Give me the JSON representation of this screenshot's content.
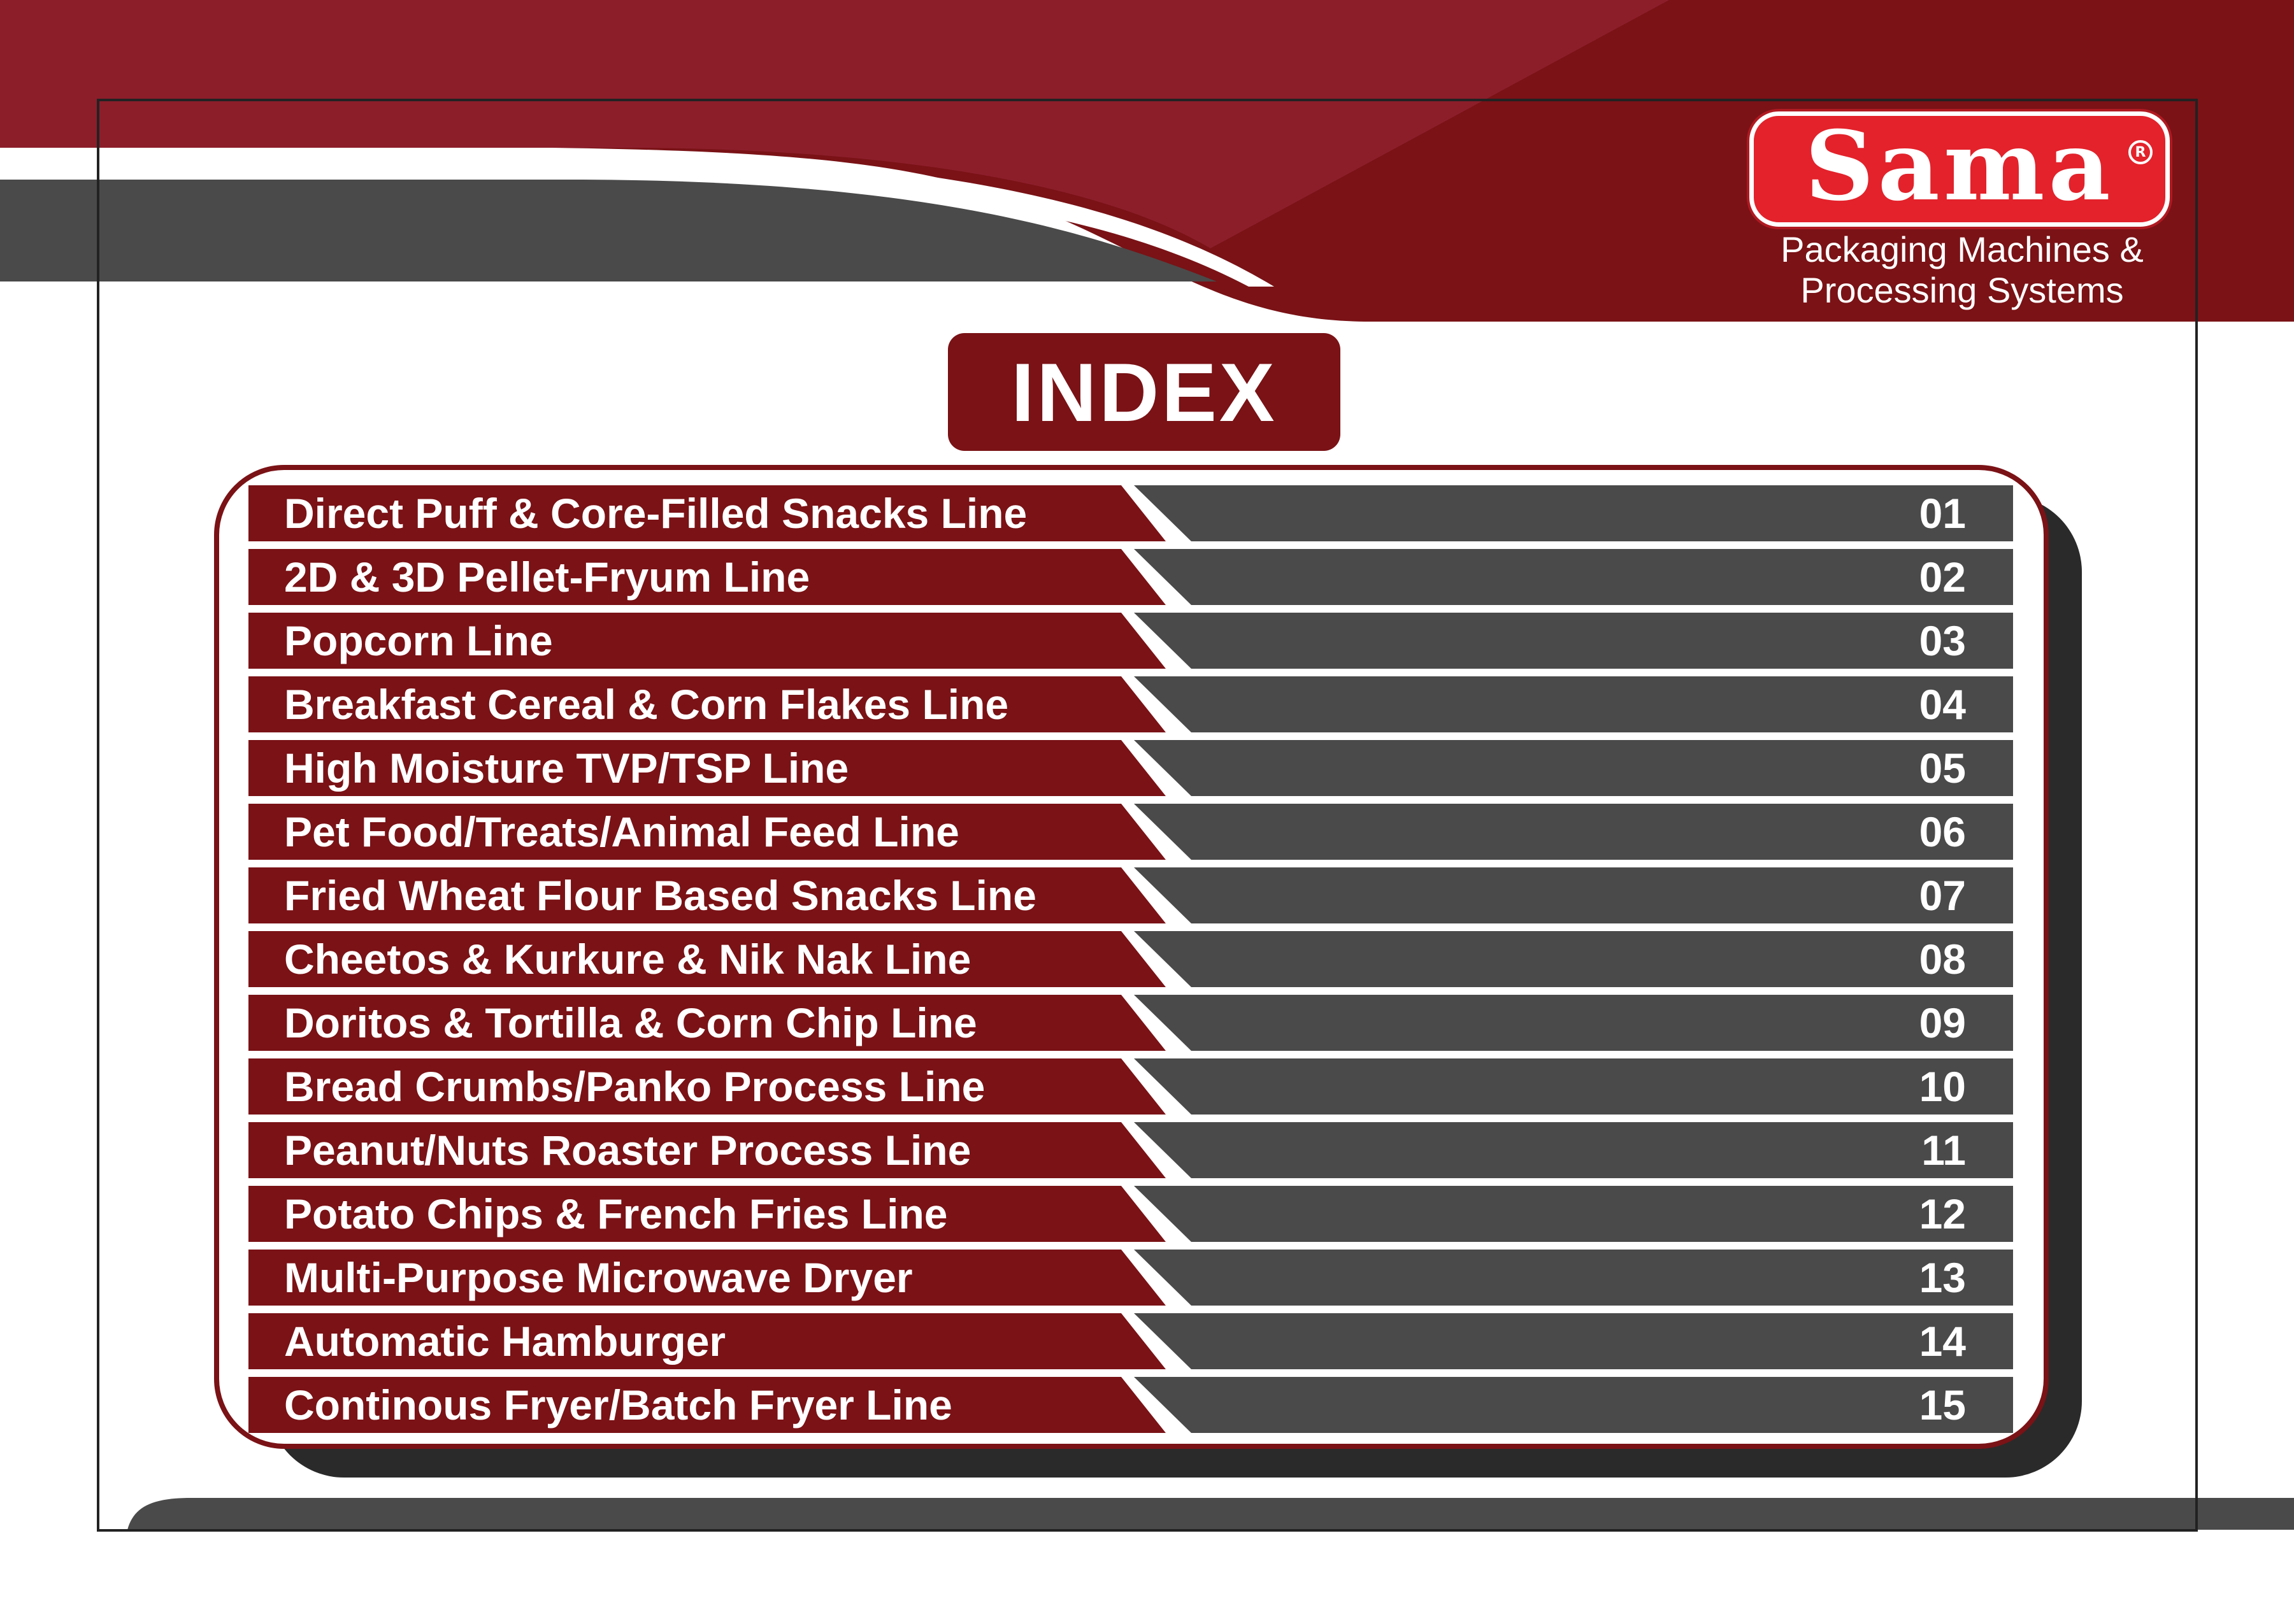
{
  "brand": {
    "logo_text": "Sama",
    "registered_mark": "R",
    "tagline_line1": "Packaging Machines &",
    "tagline_line2": "Processing Systems"
  },
  "index_title": "INDEX",
  "colors": {
    "maroon": "#7a1216",
    "maroon_light": "#8c1e2a",
    "logo_red": "#e3222b",
    "dark_gray": "#4a4a4a",
    "shadow": "#2a2a2a",
    "white": "#ffffff"
  },
  "entries": [
    {
      "title": "Direct Puff & Core-Filled Snacks Line",
      "page": "01"
    },
    {
      "title": "2D & 3D Pellet-Fryum Line",
      "page": "02"
    },
    {
      "title": "Popcorn Line",
      "page": "03"
    },
    {
      "title": "Breakfast Cereal & Corn Flakes Line",
      "page": "04"
    },
    {
      "title": "High Moisture TVP/TSP Line",
      "page": "05"
    },
    {
      "title": "Pet Food/Treats/Animal Feed Line",
      "page": "06"
    },
    {
      "title": "Fried Wheat Flour Based Snacks Line",
      "page": "07"
    },
    {
      "title": "Cheetos & Kurkure & Nik Nak Line",
      "page": "08"
    },
    {
      "title": "Doritos & Tortilla & Corn Chip Line",
      "page": "09"
    },
    {
      "title": "Bread Crumbs/Panko Process Line",
      "page": "10"
    },
    {
      "title": "Peanut/Nuts Roaster Process Line",
      "page": "11"
    },
    {
      "title": "Potato Chips & French Fries Line",
      "page": "12"
    },
    {
      "title": "Multi-Purpose Microwave Dryer",
      "page": "13"
    },
    {
      "title": "Automatic Hamburger",
      "page": "14"
    },
    {
      "title": "Continous Fryer/Batch Fryer Line",
      "page": "15"
    }
  ]
}
